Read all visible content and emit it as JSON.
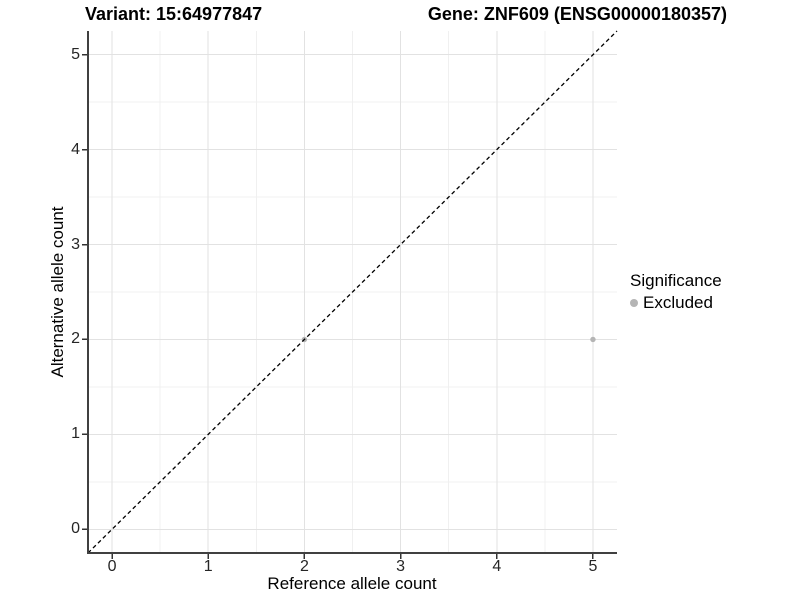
{
  "chart_data": {
    "type": "scatter",
    "title_left": "Variant: 15:64977847",
    "title_right": "Gene: ZNF609 (ENSG00000180357)",
    "xlabel": "Reference allele count",
    "ylabel": "Alternative allele count",
    "xlim": [
      -0.25,
      5.25
    ],
    "ylim": [
      -0.25,
      5.25
    ],
    "x_ticks": [
      0,
      1,
      2,
      3,
      4,
      5
    ],
    "y_ticks": [
      0,
      1,
      2,
      3,
      4,
      5
    ],
    "x_minor_ticks": [
      0.5,
      1.5,
      2.5,
      3.5,
      4.5
    ],
    "y_minor_ticks": [
      0.5,
      1.5,
      2.5,
      3.5,
      4.5
    ],
    "grid": "on",
    "identity_line": {
      "style": "dashed",
      "slope": 1,
      "intercept": 0,
      "color": "#000000"
    },
    "series": [
      {
        "name": "Excluded",
        "color": "#b5b5b5",
        "points": [
          [
            2,
            2
          ],
          [
            5,
            2
          ]
        ]
      }
    ],
    "legend": {
      "title": "Significance",
      "position": "right",
      "items": [
        {
          "label": "Excluded",
          "color": "#b5b5b5"
        }
      ]
    }
  },
  "colors": {
    "background": "#ffffff",
    "grid_major": "#e2e2e2",
    "grid_minor": "#f0f0f0",
    "axis_line": "#404040",
    "tick_mark": "#333333",
    "tick_text": "#262626"
  }
}
